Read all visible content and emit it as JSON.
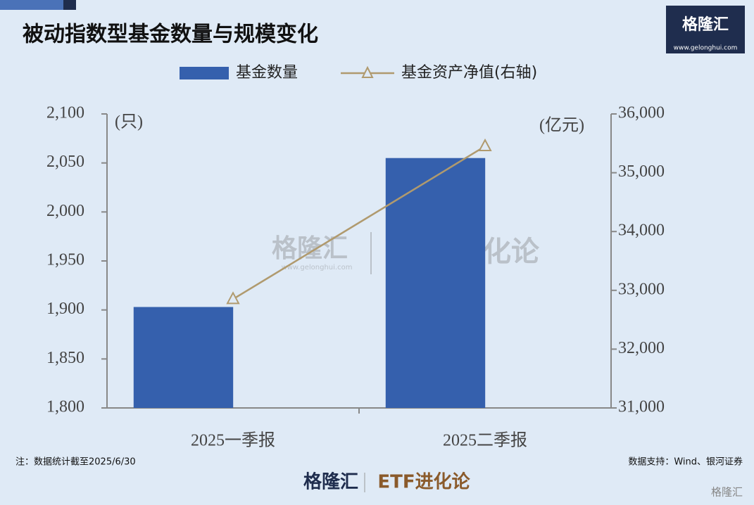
{
  "chart_data": {
    "type": "bar-line",
    "title": "被动指数型基金数量与规模变化",
    "categories": [
      "2025一季报",
      "2025二季报"
    ],
    "series": [
      {
        "name": "基金数量",
        "color": "#3560ad",
        "type": "bar",
        "values": [
          1903,
          2055
        ]
      },
      {
        "name": "基金资产净值(右轴)",
        "color": "#b09a6e",
        "type": "line",
        "axis": "y2",
        "values": [
          32850,
          35450
        ]
      }
    ],
    "ylabel": "(只)",
    "y2label": "(亿元)",
    "ylim": [
      1800,
      2100
    ],
    "yticks": [
      {
        "value": 1800,
        "label": "1,800"
      },
      {
        "value": 1850,
        "label": "1,850"
      },
      {
        "value": 1900,
        "label": "1,900"
      },
      {
        "value": 1950,
        "label": "1,950"
      },
      {
        "value": 2000,
        "label": "2,000"
      },
      {
        "value": 2050,
        "label": "2,050"
      },
      {
        "value": 2100,
        "label": "2,100"
      }
    ],
    "y2lim": [
      31000,
      36000
    ],
    "y2ticks": [
      {
        "value": 31000,
        "label": "31,000"
      },
      {
        "value": 32000,
        "label": "32,000"
      },
      {
        "value": 33000,
        "label": "33,000"
      },
      {
        "value": 34000,
        "label": "34,000"
      },
      {
        "value": 35000,
        "label": "35,000"
      },
      {
        "value": 36000,
        "label": "36,000"
      }
    ],
    "legend": "top",
    "grid": false
  },
  "note": "注：数据统计截至2025/6/30",
  "source": "数据支持：Wind、银河证券",
  "logo": {
    "name": "格隆汇",
    "url": "www.gelonghui.com"
  },
  "watermark": {
    "name": "格隆汇",
    "url": "www.gelonghui.com",
    "brand": "ETF进化论"
  },
  "footer": {
    "name": "格隆汇",
    "brand": "ETF进化论"
  },
  "corner": "格隆汇"
}
